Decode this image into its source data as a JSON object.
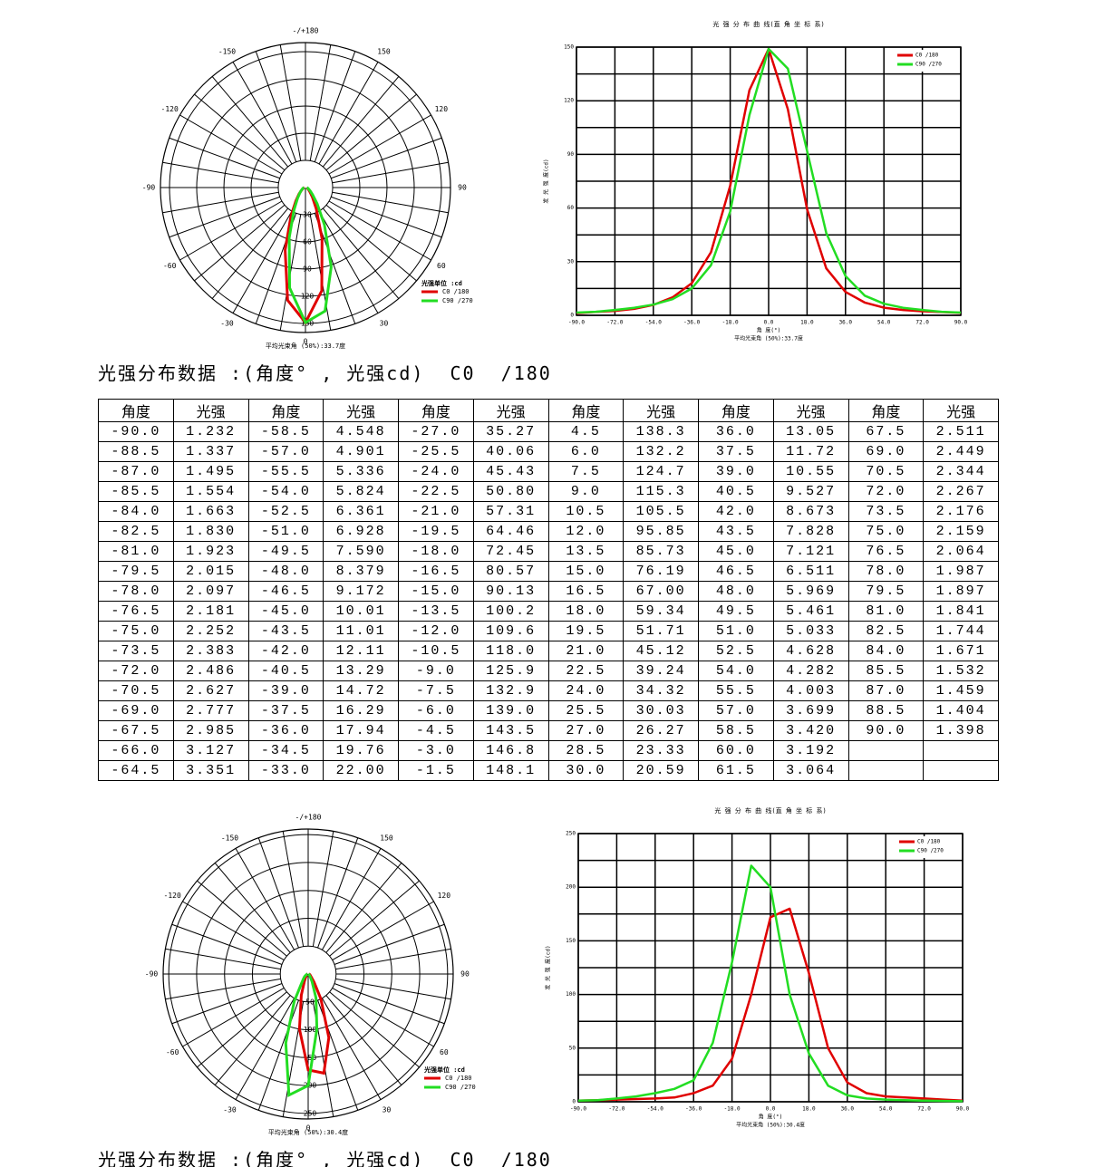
{
  "chart_data": [
    {
      "type": "polar",
      "legend_title": "光强单位 :cd",
      "note": "平均光束角 (50%):33.7度",
      "rlim": [
        0,
        160
      ],
      "rticks": [
        30,
        60,
        90,
        120,
        150
      ],
      "angle_ticks": [
        {
          "value": 180,
          "label": "-/+180"
        },
        -150,
        150,
        -120,
        120,
        -90,
        90,
        -60,
        60,
        -30,
        30,
        0
      ],
      "theta": [
        -90,
        -81,
        -72,
        -63,
        -54,
        -45,
        -36,
        -27,
        -18,
        -9,
        0,
        9,
        18,
        27,
        36,
        45,
        54,
        63,
        72,
        81,
        90
      ],
      "series": [
        {
          "name": "C0 /180",
          "color": "#e00000",
          "values": [
            1.232,
            1.923,
            2.486,
            3.6,
            5.824,
            10.01,
            17.94,
            35.27,
            72.45,
            125.9,
            149,
            115.3,
            59.34,
            26.27,
            13.05,
            7.121,
            4.282,
            3.0,
            2.267,
            1.841,
            1.398
          ]
        },
        {
          "name": "C90 /270",
          "color": "#22dd22",
          "values": [
            1.5,
            2,
            3,
            4.2,
            6,
            9,
            15,
            28,
            58,
            112,
            149,
            138,
            92,
            46,
            22,
            11,
            6.5,
            4.2,
            3,
            2,
            1.5
          ]
        }
      ]
    },
    {
      "type": "line",
      "title": "光 强 分 布 曲 线(直 角 坐 标 系)",
      "x_label": "角 度(°)",
      "y_label": "发 光 强 度(cd)",
      "note": "平均光束角 (50%):33.7度",
      "x": [
        -90,
        -81,
        -72,
        -63,
        -54,
        -45,
        -36,
        -27,
        -18,
        -9,
        0,
        9,
        18,
        27,
        36,
        45,
        54,
        63,
        72,
        81,
        90
      ],
      "xlim": [
        -90,
        90
      ],
      "xticks": [
        {
          "value": -90,
          "label": "-90.0"
        },
        {
          "value": -72,
          "label": "-72.0"
        },
        {
          "value": -54,
          "label": "-54.0"
        },
        {
          "value": -36,
          "label": "-36.0"
        },
        {
          "value": -18,
          "label": "-18.0"
        },
        {
          "value": 0,
          "label": "0.0"
        },
        {
          "value": 18,
          "label": "18.0"
        },
        {
          "value": 36,
          "label": "36.0"
        },
        {
          "value": 54,
          "label": "54.0"
        },
        {
          "value": 72,
          "label": "72.0"
        },
        {
          "value": 90,
          "label": "90.0"
        }
      ],
      "ylim": [
        0,
        150
      ],
      "yticks": [
        0,
        30,
        60,
        90,
        120,
        150
      ],
      "minor_yticks": [
        15,
        45,
        75,
        105,
        135
      ],
      "grid": true,
      "series": [
        {
          "name": "C0 /180",
          "color": "#e00000",
          "values": [
            1.232,
            1.923,
            2.486,
            3.6,
            5.824,
            10.01,
            17.94,
            35.27,
            72.45,
            125.9,
            149,
            115.3,
            59.34,
            26.27,
            13.05,
            7.121,
            4.282,
            3.0,
            2.267,
            1.841,
            1.398
          ]
        },
        {
          "name": "C90 /270",
          "color": "#22dd22",
          "values": [
            1.5,
            2,
            3,
            4.2,
            6,
            9,
            15,
            28,
            58,
            112,
            149,
            138,
            92,
            46,
            22,
            11,
            6.5,
            4.2,
            3,
            2,
            1.5
          ]
        }
      ]
    },
    {
      "type": "polar",
      "legend_title": "光强单位 :cd",
      "note": "平均光束角 (50%):30.4度",
      "rlim": [
        0,
        260
      ],
      "rticks": [
        50,
        100,
        150,
        200,
        250
      ],
      "angle_ticks": [
        {
          "value": 180,
          "label": "-/+180"
        },
        -150,
        150,
        -120,
        120,
        -90,
        90,
        -60,
        60,
        -30,
        30,
        0
      ],
      "theta": [
        -90,
        -81,
        -72,
        -63,
        -54,
        -45,
        -36,
        -27,
        -18,
        -9,
        0,
        9,
        18,
        27,
        36,
        45,
        54,
        63,
        72,
        81,
        90
      ],
      "series": [
        {
          "name": "C0 /180",
          "color": "#e00000",
          "values": [
            1,
            1.5,
            2,
            2.5,
            3,
            4,
            8,
            15,
            40,
            100,
            172,
            180,
            120,
            50,
            18,
            8,
            5,
            4,
            3,
            2,
            1
          ]
        },
        {
          "name": "C90 /270",
          "color": "#22dd22",
          "values": [
            1,
            1.5,
            3,
            5,
            8,
            12,
            20,
            55,
            130,
            220,
            200,
            100,
            45,
            15,
            6,
            3,
            2,
            1.5,
            1,
            0.8,
            0.5
          ]
        }
      ]
    },
    {
      "type": "line",
      "title": "光 强 分 布 曲 线(直 角 坐 标 系)",
      "x_label": "角 度(°)",
      "y_label": "发 光 强 度(cd)",
      "note": "平均光束角 (50%):30.4度",
      "x": [
        -90,
        -81,
        -72,
        -63,
        -54,
        -45,
        -36,
        -27,
        -18,
        -9,
        0,
        9,
        18,
        27,
        36,
        45,
        54,
        63,
        72,
        81,
        90
      ],
      "xlim": [
        -90,
        90
      ],
      "xticks": [
        {
          "value": -90,
          "label": "-90.0"
        },
        {
          "value": -72,
          "label": "-72.0"
        },
        {
          "value": -54,
          "label": "-54.0"
        },
        {
          "value": -36,
          "label": "-36.0"
        },
        {
          "value": -18,
          "label": "-18.0"
        },
        {
          "value": 0,
          "label": "0.0"
        },
        {
          "value": 18,
          "label": "18.0"
        },
        {
          "value": 36,
          "label": "36.0"
        },
        {
          "value": 54,
          "label": "54.0"
        },
        {
          "value": 72,
          "label": "72.0"
        },
        {
          "value": 90,
          "label": "90.0"
        }
      ],
      "ylim": [
        0,
        250
      ],
      "yticks": [
        0,
        50,
        100,
        150,
        200,
        250
      ],
      "minor_yticks": [
        25,
        75,
        125,
        175,
        225
      ],
      "grid": true,
      "series": [
        {
          "name": "C0 /180",
          "color": "#e00000",
          "values": [
            1,
            1.5,
            2,
            2.5,
            3,
            4,
            8,
            15,
            40,
            100,
            172,
            180,
            120,
            50,
            18,
            8,
            5,
            4,
            3,
            2,
            1
          ]
        },
        {
          "name": "C90 /270",
          "color": "#22dd22",
          "values": [
            1,
            1.5,
            3,
            5,
            8,
            12,
            20,
            55,
            130,
            220,
            200,
            100,
            45,
            15,
            6,
            3,
            2,
            1.5,
            1,
            0.8,
            0.5
          ]
        }
      ]
    }
  ],
  "sections": [
    {
      "heading": "光强分布数据 :(角度° , 光强cd)  C0  /180",
      "table": {
        "header": [
          "角度",
          "光强",
          "角度",
          "光强",
          "角度",
          "光强",
          "角度",
          "光强",
          "角度",
          "光强",
          "角度",
          "光强"
        ],
        "rows": [
          [
            "-90.0",
            "1.232",
            "-58.5",
            "4.548",
            "-27.0",
            "35.27",
            "4.5",
            "138.3",
            "36.0",
            "13.05",
            "67.5",
            "2.511"
          ],
          [
            "-88.5",
            "1.337",
            "-57.0",
            "4.901",
            "-25.5",
            "40.06",
            "6.0",
            "132.2",
            "37.5",
            "11.72",
            "69.0",
            "2.449"
          ],
          [
            "-87.0",
            "1.495",
            "-55.5",
            "5.336",
            "-24.0",
            "45.43",
            "7.5",
            "124.7",
            "39.0",
            "10.55",
            "70.5",
            "2.344"
          ],
          [
            "-85.5",
            "1.554",
            "-54.0",
            "5.824",
            "-22.5",
            "50.80",
            "9.0",
            "115.3",
            "40.5",
            "9.527",
            "72.0",
            "2.267"
          ],
          [
            "-84.0",
            "1.663",
            "-52.5",
            "6.361",
            "-21.0",
            "57.31",
            "10.5",
            "105.5",
            "42.0",
            "8.673",
            "73.5",
            "2.176"
          ],
          [
            "-82.5",
            "1.830",
            "-51.0",
            "6.928",
            "-19.5",
            "64.46",
            "12.0",
            "95.85",
            "43.5",
            "7.828",
            "75.0",
            "2.159"
          ],
          [
            "-81.0",
            "1.923",
            "-49.5",
            "7.590",
            "-18.0",
            "72.45",
            "13.5",
            "85.73",
            "45.0",
            "7.121",
            "76.5",
            "2.064"
          ],
          [
            "-79.5",
            "2.015",
            "-48.0",
            "8.379",
            "-16.5",
            "80.57",
            "15.0",
            "76.19",
            "46.5",
            "6.511",
            "78.0",
            "1.987"
          ],
          [
            "-78.0",
            "2.097",
            "-46.5",
            "9.172",
            "-15.0",
            "90.13",
            "16.5",
            "67.00",
            "48.0",
            "5.969",
            "79.5",
            "1.897"
          ],
          [
            "-76.5",
            "2.181",
            "-45.0",
            "10.01",
            "-13.5",
            "100.2",
            "18.0",
            "59.34",
            "49.5",
            "5.461",
            "81.0",
            "1.841"
          ],
          [
            "-75.0",
            "2.252",
            "-43.5",
            "11.01",
            "-12.0",
            "109.6",
            "19.5",
            "51.71",
            "51.0",
            "5.033",
            "82.5",
            "1.744"
          ],
          [
            "-73.5",
            "2.383",
            "-42.0",
            "12.11",
            "-10.5",
            "118.0",
            "21.0",
            "45.12",
            "52.5",
            "4.628",
            "84.0",
            "1.671"
          ],
          [
            "-72.0",
            "2.486",
            "-40.5",
            "13.29",
            "-9.0",
            "125.9",
            "22.5",
            "39.24",
            "54.0",
            "4.282",
            "85.5",
            "1.532"
          ],
          [
            "-70.5",
            "2.627",
            "-39.0",
            "14.72",
            "-7.5",
            "132.9",
            "24.0",
            "34.32",
            "55.5",
            "4.003",
            "87.0",
            "1.459"
          ],
          [
            "-69.0",
            "2.777",
            "-37.5",
            "16.29",
            "-6.0",
            "139.0",
            "25.5",
            "30.03",
            "57.0",
            "3.699",
            "88.5",
            "1.404"
          ],
          [
            "-67.5",
            "2.985",
            "-36.0",
            "17.94",
            "-4.5",
            "143.5",
            "27.0",
            "26.27",
            "58.5",
            "3.420",
            "90.0",
            "1.398"
          ],
          [
            "-66.0",
            "3.127",
            "-34.5",
            "19.76",
            "-3.0",
            "146.8",
            "28.5",
            "23.33",
            "60.0",
            "3.192"
          ],
          [
            "-64.5",
            "3.351",
            "-33.0",
            "22.00",
            "-1.5",
            "148.1",
            "30.0",
            "20.59",
            "61.5",
            "3.064"
          ]
        ]
      }
    },
    {
      "heading": "光强分布数据 :(角度° , 光强cd)  C0  /180"
    }
  ]
}
